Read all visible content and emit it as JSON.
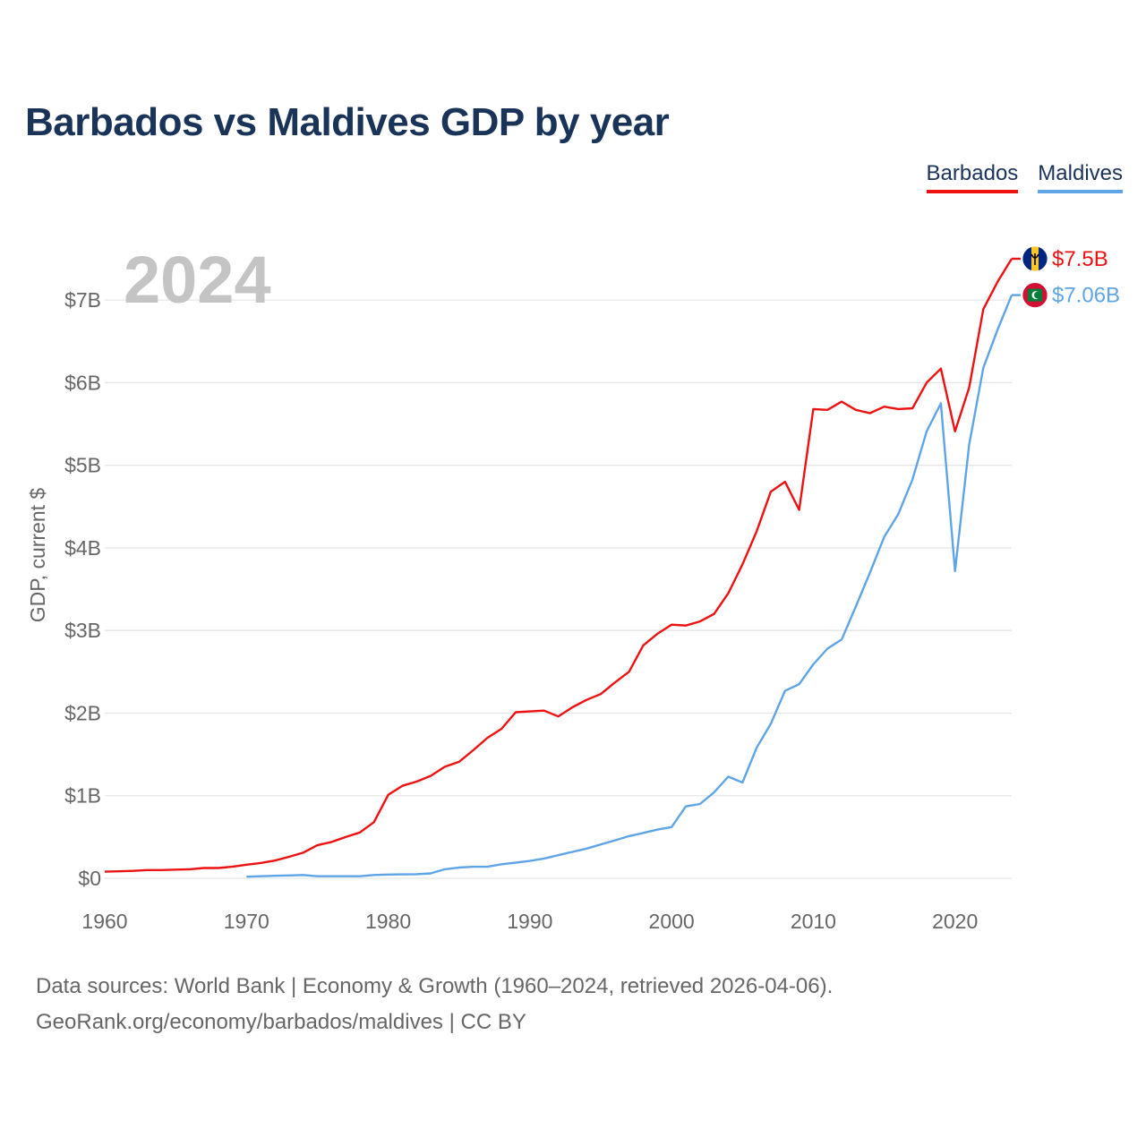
{
  "title": "Barbados vs Maldives GDP by year",
  "legend": [
    {
      "label": "Barbados",
      "color": "#ee1111"
    },
    {
      "label": "Maldives",
      "color": "#5ea4e6"
    }
  ],
  "year_label": "2024",
  "end_labels": {
    "barbados": "$7.5B",
    "maldives": "$7.06B"
  },
  "flags": {
    "barbados": "barbados-flag-icon",
    "maldives": "maldives-flag-icon"
  },
  "source": {
    "line1": "Data sources: World Bank | Economy & Growth (1960–2024, retrieved 2026-04-06).",
    "line2": "GeoRank.org/economy/barbados/maldives | CC BY"
  },
  "chart_data": {
    "type": "line",
    "title": "Barbados vs Maldives GDP by year",
    "xlabel": "",
    "ylabel": "GDP, current $",
    "xlim": [
      1960,
      2024
    ],
    "ylim": [
      0,
      7.5
    ],
    "xticks": [
      1960,
      1970,
      1980,
      1990,
      2000,
      2010,
      2020
    ],
    "yticks": [
      0,
      1,
      2,
      3,
      4,
      5,
      6,
      7
    ],
    "ytick_labels": [
      "$0",
      "$1B",
      "$2B",
      "$3B",
      "$4B",
      "$5B",
      "$6B",
      "$7B"
    ],
    "units": "billions USD",
    "grid": true,
    "legend_position": "top-right",
    "series": [
      {
        "name": "Barbados",
        "color": "#ee1111",
        "x": [
          1960,
          1961,
          1962,
          1963,
          1964,
          1965,
          1966,
          1967,
          1968,
          1969,
          1970,
          1971,
          1972,
          1973,
          1974,
          1975,
          1976,
          1977,
          1978,
          1979,
          1980,
          1981,
          1982,
          1983,
          1984,
          1985,
          1986,
          1987,
          1988,
          1989,
          1990,
          1991,
          1992,
          1993,
          1994,
          1995,
          1996,
          1997,
          1998,
          1999,
          2000,
          2001,
          2002,
          2003,
          2004,
          2005,
          2006,
          2007,
          2008,
          2009,
          2010,
          2011,
          2012,
          2013,
          2014,
          2015,
          2016,
          2017,
          2018,
          2019,
          2020,
          2021,
          2022,
          2023,
          2024
        ],
        "values": [
          0.08,
          0.085,
          0.09,
          0.1,
          0.1,
          0.105,
          0.11,
          0.125,
          0.125,
          0.14,
          0.165,
          0.185,
          0.215,
          0.26,
          0.31,
          0.4,
          0.44,
          0.5,
          0.555,
          0.68,
          1.01,
          1.12,
          1.17,
          1.24,
          1.35,
          1.41,
          1.55,
          1.7,
          1.81,
          2.01,
          2.02,
          2.03,
          1.96,
          2.07,
          2.16,
          2.23,
          2.37,
          2.5,
          2.82,
          2.96,
          3.07,
          3.06,
          3.11,
          3.2,
          3.45,
          3.8,
          4.2,
          4.68,
          4.8,
          4.46,
          5.68,
          5.67,
          5.77,
          5.67,
          5.63,
          5.71,
          5.68,
          5.69,
          6.0,
          6.17,
          5.41,
          5.94,
          6.89,
          7.22,
          7.5
        ]
      },
      {
        "name": "Maldives",
        "color": "#5ea4e6",
        "x": [
          1970,
          1971,
          1972,
          1973,
          1974,
          1975,
          1976,
          1977,
          1978,
          1979,
          1980,
          1981,
          1982,
          1983,
          1984,
          1985,
          1986,
          1987,
          1988,
          1989,
          1990,
          1991,
          1992,
          1993,
          1994,
          1995,
          1996,
          1997,
          1998,
          1999,
          2000,
          2001,
          2002,
          2003,
          2004,
          2005,
          2006,
          2007,
          2008,
          2009,
          2010,
          2011,
          2012,
          2013,
          2014,
          2015,
          2016,
          2017,
          2018,
          2019,
          2020,
          2021,
          2022,
          2023,
          2024
        ],
        "values": [
          0.02,
          0.025,
          0.03,
          0.035,
          0.04,
          0.025,
          0.025,
          0.025,
          0.025,
          0.04,
          0.045,
          0.048,
          0.05,
          0.06,
          0.11,
          0.13,
          0.14,
          0.14,
          0.17,
          0.19,
          0.21,
          0.24,
          0.28,
          0.32,
          0.36,
          0.41,
          0.46,
          0.51,
          0.55,
          0.59,
          0.62,
          0.87,
          0.9,
          1.04,
          1.23,
          1.16,
          1.58,
          1.87,
          2.27,
          2.35,
          2.59,
          2.78,
          2.89,
          3.29,
          3.7,
          4.13,
          4.41,
          4.83,
          5.41,
          5.75,
          3.72,
          5.25,
          6.18,
          6.64,
          7.06
        ]
      }
    ]
  }
}
